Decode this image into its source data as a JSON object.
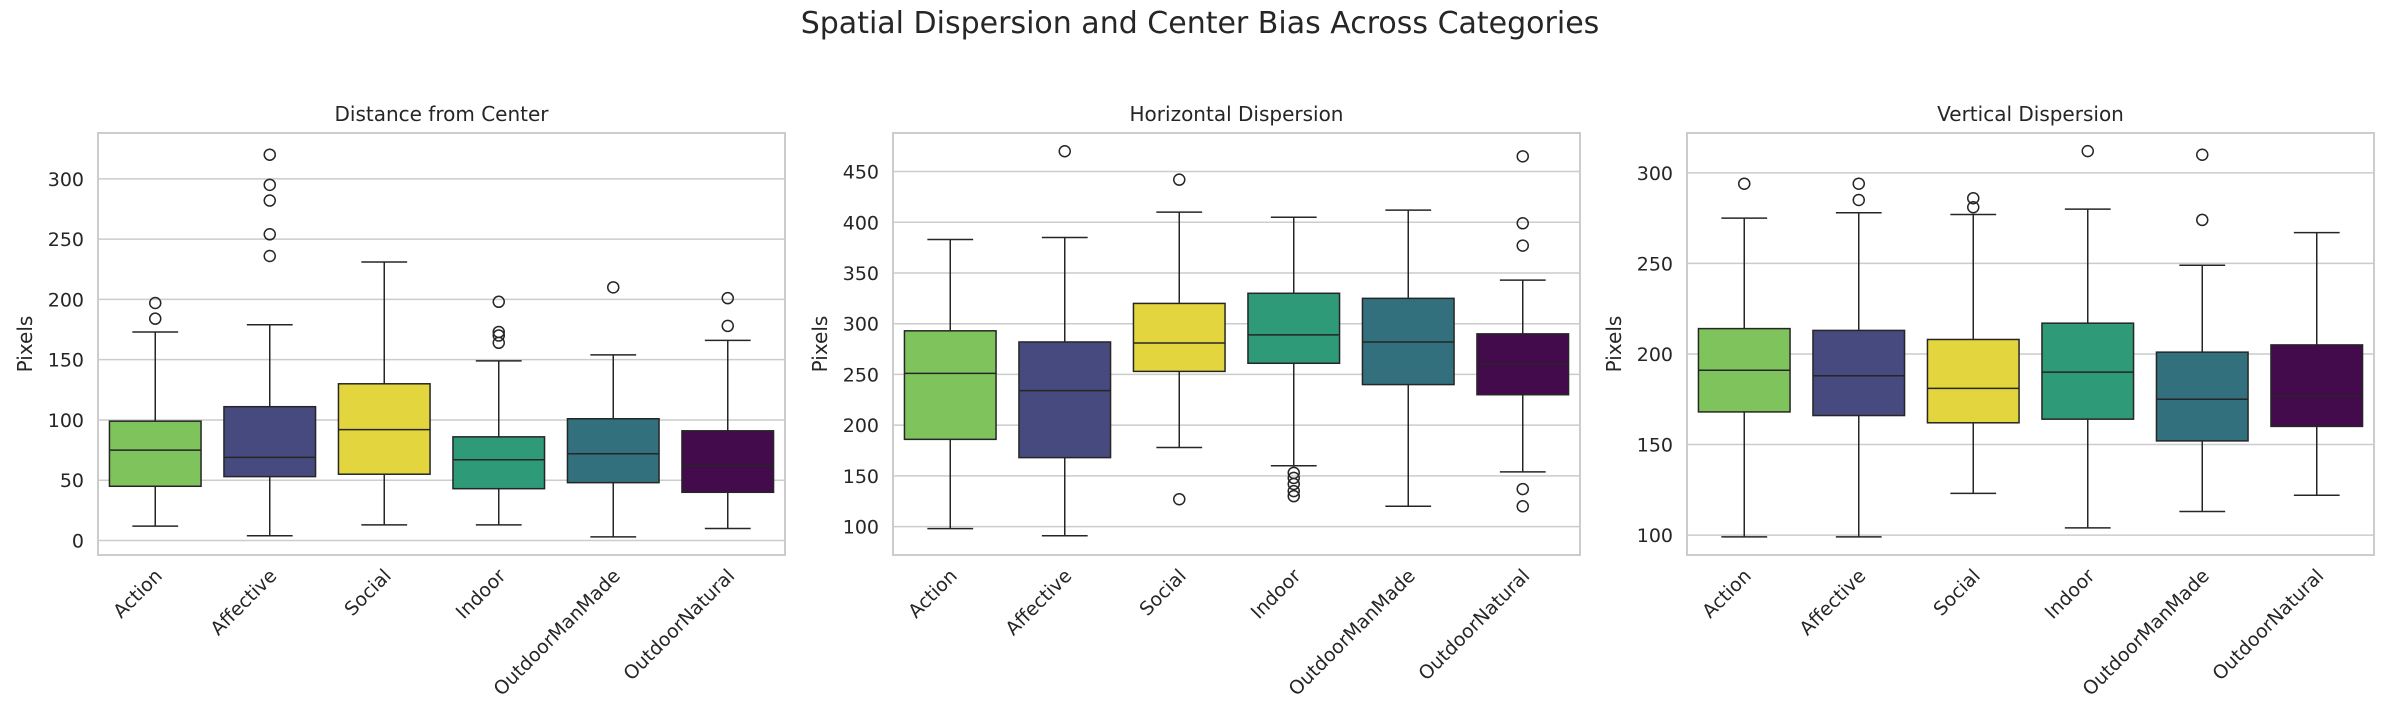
{
  "suptitle": "Spatial Dispersion and Center Bias Across Categories",
  "colors": {
    "Action": "#7fc35c",
    "Affective": "#474a7f",
    "Social": "#e2d53e",
    "Indoor": "#2e9a78",
    "OutdoorManMade": "#31707c",
    "OutdoorNatural": "#430b4c"
  },
  "chart_data": [
    {
      "type": "box",
      "title": "Distance from Center",
      "ylabel": "Pixels",
      "ylim": [
        -12,
        338
      ],
      "yticks": [
        0,
        50,
        100,
        150,
        200,
        250,
        300
      ],
      "grid": true,
      "categories": [
        "Action",
        "Affective",
        "Social",
        "Indoor",
        "OutdoorManMade",
        "OutdoorNatural"
      ],
      "boxes": [
        {
          "whislo": 12,
          "q1": 45,
          "med": 75,
          "q3": 99,
          "whishi": 173,
          "fliers": [
            184,
            197
          ]
        },
        {
          "whislo": 4,
          "q1": 53,
          "med": 69,
          "q3": 111,
          "whishi": 179,
          "fliers": [
            236,
            254,
            282,
            295,
            320
          ]
        },
        {
          "whislo": 13,
          "q1": 55,
          "med": 92,
          "q3": 130,
          "whishi": 231,
          "fliers": []
        },
        {
          "whislo": 13,
          "q1": 43,
          "med": 67,
          "q3": 86,
          "whishi": 149,
          "fliers": [
            164,
            170,
            173,
            198
          ]
        },
        {
          "whislo": 3,
          "q1": 48,
          "med": 72,
          "q3": 101,
          "whishi": 154,
          "fliers": [
            210
          ]
        },
        {
          "whislo": 10,
          "q1": 40,
          "med": 62,
          "q3": 91,
          "whishi": 166,
          "fliers": [
            178,
            201
          ]
        }
      ]
    },
    {
      "type": "box",
      "title": "Horizontal Dispersion",
      "ylabel": "Pixels",
      "ylim": [
        72,
        488
      ],
      "yticks": [
        100,
        150,
        200,
        250,
        300,
        350,
        400,
        450
      ],
      "grid": true,
      "categories": [
        "Action",
        "Affective",
        "Social",
        "Indoor",
        "OutdoorManMade",
        "OutdoorNatural"
      ],
      "boxes": [
        {
          "whislo": 98,
          "q1": 186,
          "med": 251,
          "q3": 293,
          "whishi": 383,
          "fliers": []
        },
        {
          "whislo": 91,
          "q1": 168,
          "med": 234,
          "q3": 282,
          "whishi": 385,
          "fliers": [
            470
          ]
        },
        {
          "whislo": 178,
          "q1": 253,
          "med": 281,
          "q3": 320,
          "whishi": 410,
          "fliers": [
            127,
            442
          ]
        },
        {
          "whislo": 160,
          "q1": 261,
          "med": 289,
          "q3": 330,
          "whishi": 405,
          "fliers": [
            130,
            135,
            142,
            148,
            153
          ]
        },
        {
          "whislo": 120,
          "q1": 240,
          "med": 282,
          "q3": 325,
          "whishi": 412,
          "fliers": []
        },
        {
          "whislo": 154,
          "q1": 230,
          "med": 260,
          "q3": 290,
          "whishi": 343,
          "fliers": [
            120,
            137,
            377,
            399,
            465
          ]
        }
      ]
    },
    {
      "type": "box",
      "title": "Vertical Dispersion",
      "ylabel": "Pixels",
      "ylim": [
        89,
        322
      ],
      "yticks": [
        100,
        150,
        200,
        250,
        300
      ],
      "grid": true,
      "categories": [
        "Action",
        "Affective",
        "Social",
        "Indoor",
        "OutdoorManMade",
        "OutdoorNatural"
      ],
      "boxes": [
        {
          "whislo": 99,
          "q1": 168,
          "med": 191,
          "q3": 214,
          "whishi": 275,
          "fliers": [
            294
          ]
        },
        {
          "whislo": 99,
          "q1": 166,
          "med": 188,
          "q3": 213,
          "whishi": 278,
          "fliers": [
            285,
            294
          ]
        },
        {
          "whislo": 123,
          "q1": 162,
          "med": 181,
          "q3": 208,
          "whishi": 277,
          "fliers": [
            281,
            286
          ]
        },
        {
          "whislo": 104,
          "q1": 164,
          "med": 190,
          "q3": 217,
          "whishi": 280,
          "fliers": [
            312
          ]
        },
        {
          "whislo": 113,
          "q1": 152,
          "med": 175,
          "q3": 201,
          "whishi": 249,
          "fliers": [
            274,
            310
          ]
        },
        {
          "whislo": 122,
          "q1": 160,
          "med": 177,
          "q3": 205,
          "whishi": 267,
          "fliers": []
        }
      ]
    }
  ]
}
